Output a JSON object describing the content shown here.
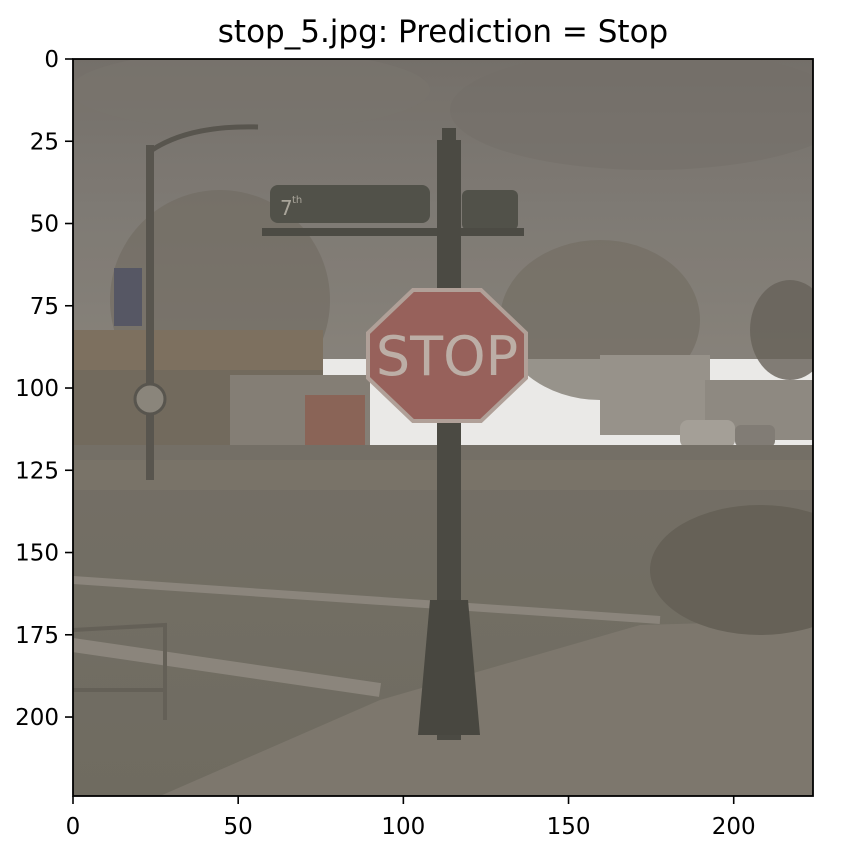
{
  "figure": {
    "title": "stop_5.jpg: Prediction = Stop"
  },
  "image": {
    "filename": "stop_5.jpg",
    "prediction": "Stop",
    "sign_text": "STOP",
    "street_sign_text": "7",
    "street_sign_suffix": "th"
  },
  "chart_data": {
    "type": "image",
    "title": "stop_5.jpg: Prediction = Stop",
    "xlabel": "",
    "ylabel": "",
    "xlim": [
      0,
      224
    ],
    "ylim": [
      224,
      0
    ],
    "xticks": [
      0,
      50,
      100,
      150,
      200
    ],
    "yticks": [
      0,
      25,
      50,
      75,
      100,
      125,
      150,
      175,
      200
    ],
    "grid": false
  },
  "colors": {
    "background": "#ffffff",
    "axis": "#000000",
    "sky": "#7b7771",
    "ground": "#6e6a5f",
    "stop_sign": "#9a5a55",
    "pole": "#3d3d37"
  }
}
